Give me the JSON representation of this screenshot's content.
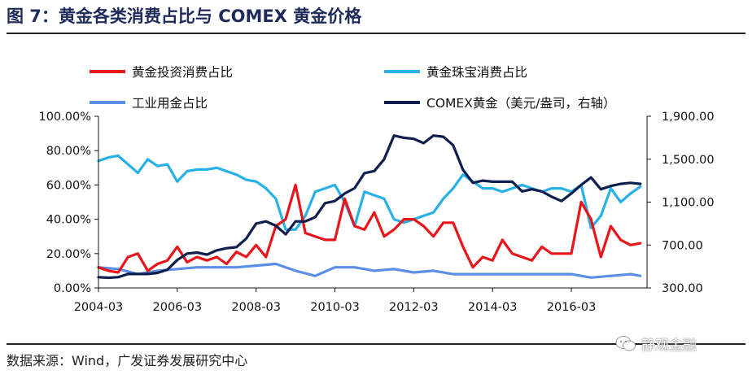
{
  "title": "图 7：黄金各类消费占比与 COMEX 黄金价格",
  "source": "数据来源：Wind，广发证券发展研究中心",
  "watermark": "静观金融",
  "chart_data": {
    "type": "line",
    "x_ticks": [
      "2004-03",
      "2006-03",
      "2008-03",
      "2010-03",
      "2012-03",
      "2014-03",
      "2016-03"
    ],
    "y_left": {
      "min": 0,
      "max": 100,
      "ticks": [
        "0.00%",
        "20.00%",
        "40.00%",
        "60.00%",
        "80.00%",
        "100.00%"
      ]
    },
    "y_right": {
      "min": 300,
      "max": 1900,
      "ticks": [
        "300.00",
        "700.00",
        "1,100.00",
        "1,500.00",
        "1,900.00"
      ]
    },
    "grid": false,
    "legend_position": "top",
    "series": [
      {
        "name": "黄金投资消费占比",
        "axis": "left",
        "color": "#e8151b",
        "x": [
          2004.0,
          2004.25,
          2004.5,
          2004.75,
          2005.0,
          2005.25,
          2005.5,
          2005.75,
          2006.0,
          2006.25,
          2006.5,
          2006.75,
          2007.0,
          2007.25,
          2007.5,
          2007.75,
          2008.0,
          2008.25,
          2008.5,
          2008.75,
          2009.0,
          2009.25,
          2009.5,
          2009.75,
          2010.0,
          2010.25,
          2010.5,
          2010.75,
          2011.0,
          2011.25,
          2011.5,
          2011.75,
          2012.0,
          2012.25,
          2012.5,
          2012.75,
          2013.0,
          2013.25,
          2013.5,
          2013.75,
          2014.0,
          2014.25,
          2014.5,
          2014.75,
          2015.0,
          2015.25,
          2015.5,
          2015.75,
          2016.0,
          2016.25,
          2016.5,
          2016.75,
          2017.0,
          2017.25,
          2017.5,
          2017.75
        ],
        "values": [
          12,
          10,
          9,
          18,
          20,
          10,
          14,
          16,
          24,
          15,
          18,
          16,
          18,
          14,
          21,
          18,
          25,
          18,
          36,
          40,
          60,
          32,
          30,
          28,
          28,
          52,
          36,
          34,
          44,
          30,
          34,
          40,
          40,
          36,
          30,
          38,
          38,
          24,
          12,
          18,
          16,
          28,
          20,
          18,
          16,
          24,
          20,
          20,
          20,
          50,
          40,
          18,
          36,
          28,
          25,
          26
        ]
      },
      {
        "name": "黄金珠宝消费占比",
        "axis": "left",
        "color": "#27b1e6",
        "x": [
          2004.0,
          2004.25,
          2004.5,
          2004.75,
          2005.0,
          2005.25,
          2005.5,
          2005.75,
          2006.0,
          2006.25,
          2006.5,
          2006.75,
          2007.0,
          2007.25,
          2007.5,
          2007.75,
          2008.0,
          2008.25,
          2008.5,
          2008.75,
          2009.0,
          2009.25,
          2009.5,
          2009.75,
          2010.0,
          2010.25,
          2010.5,
          2010.75,
          2011.0,
          2011.25,
          2011.5,
          2011.75,
          2012.0,
          2012.25,
          2012.5,
          2012.75,
          2013.0,
          2013.25,
          2013.5,
          2013.75,
          2014.0,
          2014.25,
          2014.5,
          2014.75,
          2015.0,
          2015.25,
          2015.5,
          2015.75,
          2016.0,
          2016.25,
          2016.5,
          2016.75,
          2017.0,
          2017.25,
          2017.5,
          2017.75
        ],
        "values": [
          74,
          76,
          77,
          72,
          67,
          75,
          71,
          72,
          62,
          68,
          69,
          69,
          70,
          68,
          66,
          63,
          62,
          58,
          52,
          34,
          34,
          42,
          56,
          58,
          60,
          50,
          36,
          56,
          54,
          52,
          40,
          38,
          40,
          42,
          44,
          52,
          58,
          66,
          62,
          58,
          58,
          56,
          58,
          60,
          58,
          56,
          58,
          58,
          56,
          60,
          35,
          42,
          58,
          50,
          55,
          59
        ]
      },
      {
        "name": "工业用金占比",
        "axis": "left",
        "color": "#5b8ee6",
        "x": [
          2004.0,
          2004.5,
          2005.0,
          2005.5,
          2006.0,
          2006.5,
          2007.0,
          2007.5,
          2008.0,
          2008.5,
          2009.0,
          2009.5,
          2010.0,
          2010.5,
          2011.0,
          2011.5,
          2012.0,
          2012.5,
          2013.0,
          2013.5,
          2014.0,
          2014.5,
          2015.0,
          2015.5,
          2016.0,
          2016.5,
          2017.0,
          2017.5,
          2017.75
        ],
        "values": [
          12,
          11,
          8,
          10,
          11,
          12,
          12,
          12,
          13,
          14,
          10,
          7,
          12,
          12,
          10,
          11,
          9,
          10,
          8,
          8,
          8,
          8,
          8,
          8,
          8,
          6,
          7,
          8,
          7
        ]
      },
      {
        "name": "COMEX黄金（美元/盎司，右轴）",
        "axis": "right",
        "color": "#0d1e4f",
        "x": [
          2004.0,
          2004.25,
          2004.5,
          2004.75,
          2005.0,
          2005.25,
          2005.5,
          2005.75,
          2006.0,
          2006.25,
          2006.5,
          2006.75,
          2007.0,
          2007.25,
          2007.5,
          2007.75,
          2008.0,
          2008.25,
          2008.5,
          2008.75,
          2009.0,
          2009.25,
          2009.5,
          2009.75,
          2010.0,
          2010.25,
          2010.5,
          2010.75,
          2011.0,
          2011.25,
          2011.5,
          2011.75,
          2012.0,
          2012.25,
          2012.5,
          2012.75,
          2013.0,
          2013.25,
          2013.5,
          2013.75,
          2014.0,
          2014.25,
          2014.5,
          2014.75,
          2015.0,
          2015.25,
          2015.5,
          2015.75,
          2016.0,
          2016.25,
          2016.5,
          2016.75,
          2017.0,
          2017.25,
          2017.5,
          2017.75
        ],
        "values": [
          400,
          395,
          400,
          430,
          430,
          430,
          440,
          470,
          560,
          620,
          630,
          610,
          650,
          670,
          680,
          760,
          900,
          920,
          880,
          800,
          920,
          920,
          960,
          1090,
          1110,
          1180,
          1230,
          1370,
          1390,
          1500,
          1720,
          1700,
          1690,
          1650,
          1720,
          1710,
          1630,
          1400,
          1280,
          1300,
          1290,
          1290,
          1290,
          1200,
          1220,
          1200,
          1150,
          1110,
          1180,
          1260,
          1330,
          1220,
          1250,
          1270,
          1280,
          1270
        ]
      }
    ]
  }
}
